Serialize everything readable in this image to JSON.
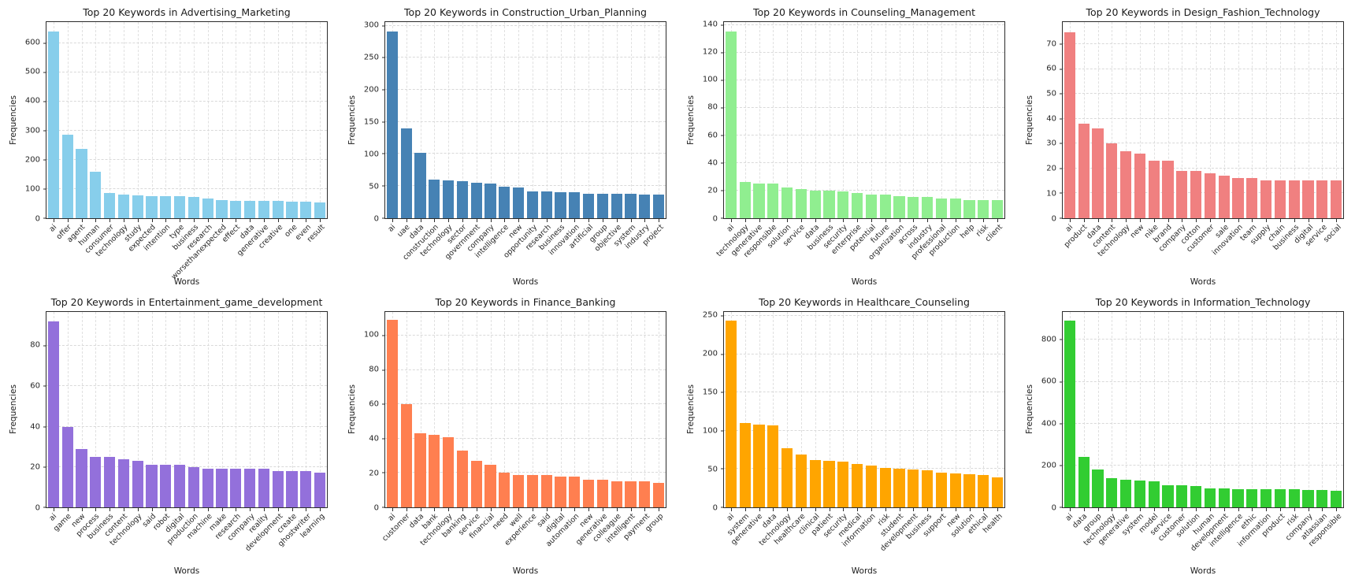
{
  "figure": {
    "background": "#ffffff",
    "layout": "2x4 grid of bar charts"
  },
  "chart_data": [
    {
      "type": "bar",
      "title": "Top 20 Keywords in Advertising_Marketing",
      "xlabel": "Words",
      "ylabel": "Frequencies",
      "color": "#87CEEB",
      "ylim": [
        0,
        672
      ],
      "yticks": [
        0,
        100,
        200,
        300,
        400,
        500,
        600
      ],
      "grid": true,
      "categories": [
        "ai",
        "offer",
        "agent",
        "human",
        "consumer",
        "technology",
        "study",
        "expected",
        "intention",
        "type",
        "business",
        "research",
        "worsethanexpected",
        "effect",
        "data",
        "generative",
        "creative",
        "one",
        "even",
        "result"
      ],
      "values": [
        640,
        285,
        236,
        157,
        86,
        81,
        78,
        75,
        75,
        74,
        73,
        66,
        62,
        59,
        59,
        57,
        57,
        55,
        55,
        53
      ]
    },
    {
      "type": "bar",
      "title": "Top 20 Keywords in Construction_Urban_Planning",
      "xlabel": "Words",
      "ylabel": "Frequencies",
      "color": "#4682B4",
      "ylim": [
        0,
        306
      ],
      "yticks": [
        0,
        50,
        100,
        150,
        200,
        250,
        300
      ],
      "grid": true,
      "categories": [
        "ai",
        "uae",
        "data",
        "construction",
        "technology",
        "sector",
        "government",
        "company",
        "intelligence",
        "new",
        "opportunity",
        "research",
        "business",
        "innovation",
        "artificial",
        "group",
        "objective",
        "system",
        "industry",
        "project"
      ],
      "values": [
        291,
        140,
        102,
        60,
        58,
        57,
        55,
        53,
        49,
        48,
        41,
        41,
        40,
        40,
        38,
        38,
        38,
        37,
        36,
        36
      ]
    },
    {
      "type": "bar",
      "title": "Top 20 Keywords in Counseling_Management",
      "xlabel": "Words",
      "ylabel": "Frequencies",
      "color": "#90EE90",
      "ylim": [
        0,
        142
      ],
      "yticks": [
        0,
        20,
        40,
        60,
        80,
        100,
        120,
        140
      ],
      "grid": true,
      "categories": [
        "ai",
        "technology",
        "generative",
        "responsible",
        "solution",
        "service",
        "data",
        "business",
        "security",
        "enterprise",
        "potential",
        "future",
        "organization",
        "across",
        "industry",
        "professional",
        "production",
        "help",
        "risk",
        "client"
      ],
      "values": [
        135,
        26,
        25,
        25,
        22,
        21,
        20,
        20,
        19,
        18,
        17,
        17,
        16,
        15,
        15,
        14,
        14,
        13,
        13,
        13
      ]
    },
    {
      "type": "bar",
      "title": "Top 20 Keywords in Design_Fashion_Technology",
      "xlabel": "Words",
      "ylabel": "Frequencies",
      "color": "#F08080",
      "ylim": [
        0,
        79
      ],
      "yticks": [
        0,
        10,
        20,
        30,
        40,
        50,
        60,
        70
      ],
      "grid": true,
      "categories": [
        "ai",
        "product",
        "data",
        "content",
        "technology",
        "new",
        "nike",
        "brand",
        "company",
        "cotton",
        "customer",
        "sale",
        "innovation",
        "team",
        "supply",
        "chain",
        "business",
        "digital",
        "service",
        "social"
      ],
      "values": [
        75,
        38,
        36,
        30,
        27,
        26,
        23,
        23,
        19,
        19,
        18,
        17,
        16,
        16,
        15,
        15,
        15,
        15,
        15,
        15
      ]
    },
    {
      "type": "bar",
      "title": "Top 20 Keywords in Entertainment_game_development",
      "xlabel": "Words",
      "ylabel": "Frequencies",
      "color": "#9370DB",
      "ylim": [
        0,
        97
      ],
      "yticks": [
        0,
        20,
        40,
        60,
        80
      ],
      "grid": true,
      "categories": [
        "ai",
        "game",
        "new",
        "process",
        "business",
        "content",
        "technology",
        "said",
        "robot",
        "digital",
        "production",
        "machine",
        "make",
        "research",
        "company",
        "reality",
        "development",
        "create",
        "ghostwriter",
        "learning"
      ],
      "values": [
        92,
        40,
        29,
        25,
        25,
        24,
        23,
        21,
        21,
        21,
        20,
        19,
        19,
        19,
        19,
        19,
        18,
        18,
        18,
        17
      ]
    },
    {
      "type": "bar",
      "title": "Top 20 Keywords in Finance_Banking",
      "xlabel": "Words",
      "ylabel": "Frequencies",
      "color": "#FF7F50",
      "ylim": [
        0,
        114
      ],
      "yticks": [
        0,
        20,
        40,
        60,
        80,
        100
      ],
      "grid": true,
      "categories": [
        "ai",
        "customer",
        "data",
        "bank",
        "technology",
        "banking",
        "service",
        "financial",
        "need",
        "well",
        "experience",
        "said",
        "digital",
        "automation",
        "new",
        "generative",
        "colleague",
        "intelligent",
        "payment",
        "group"
      ],
      "values": [
        109,
        60,
        43,
        42,
        41,
        33,
        27,
        25,
        20,
        19,
        19,
        19,
        18,
        18,
        16,
        16,
        15,
        15,
        15,
        14
      ]
    },
    {
      "type": "bar",
      "title": "Top 20 Keywords in Healthcare_Counseling",
      "xlabel": "Words",
      "ylabel": "Frequencies",
      "color": "#FFA500",
      "ylim": [
        0,
        256
      ],
      "yticks": [
        0,
        50,
        100,
        150,
        200,
        250
      ],
      "grid": true,
      "categories": [
        "ai",
        "system",
        "generative",
        "data",
        "technology",
        "healthcare",
        "clinical",
        "patient",
        "security",
        "medical",
        "information",
        "risk",
        "student",
        "development",
        "business",
        "support",
        "new",
        "solution",
        "ethical",
        "health"
      ],
      "values": [
        244,
        110,
        108,
        107,
        77,
        69,
        62,
        61,
        60,
        57,
        55,
        52,
        50,
        49,
        48,
        45,
        44,
        43,
        42,
        39
      ]
    },
    {
      "type": "bar",
      "title": "Top 20 Keywords in Information_Technology",
      "xlabel": "Words",
      "ylabel": "Frequencies",
      "color": "#32CD32",
      "ylim": [
        0,
        935
      ],
      "yticks": [
        0,
        200,
        400,
        600,
        800
      ],
      "grid": true,
      "categories": [
        "ai",
        "data",
        "group",
        "technology",
        "generative",
        "system",
        "model",
        "service",
        "customer",
        "solution",
        "human",
        "development",
        "intelligence",
        "ethic",
        "information",
        "product",
        "risk",
        "company",
        "atlassian",
        "responsible"
      ],
      "values": [
        890,
        240,
        180,
        140,
        130,
        128,
        125,
        105,
        105,
        100,
        90,
        90,
        88,
        88,
        88,
        88,
        87,
        82,
        82,
        80
      ]
    }
  ]
}
